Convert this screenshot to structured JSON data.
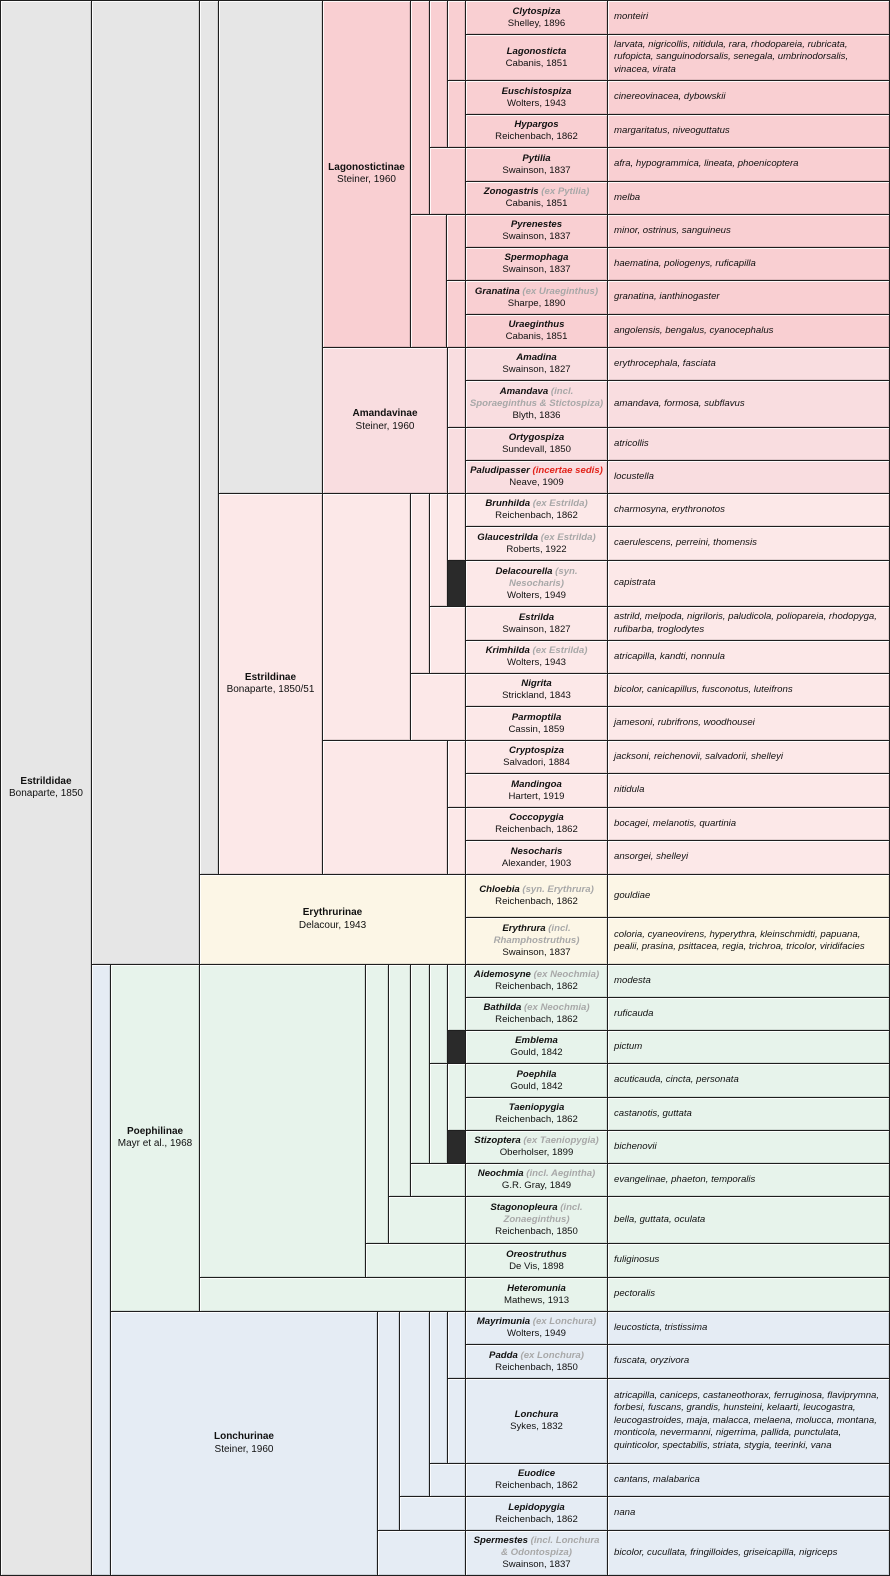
{
  "colors": {
    "gray": "#e6e6e6",
    "lagonostictinae": "#f9cfd2",
    "amandavinae": "#f9dde0",
    "estrildinae": "#fce8e8",
    "erythrurinae": "#fcf6e6",
    "poephilinae": "#e7f3eb",
    "lonchurinae": "#e5ecf4",
    "note_gray": "#a8a8a8",
    "note_red": "#e2231a"
  },
  "family": {
    "name": "Estrildidae",
    "author": "Bonaparte, 1850"
  },
  "subfamilies": {
    "lagonostictinae": {
      "name": "Lagonostictinae",
      "author": "Steiner, 1960"
    },
    "amandavinae": {
      "name": "Amandavinae",
      "author": "Steiner, 1960"
    },
    "estrildinae": {
      "name": "Estrildinae",
      "author": "Bonaparte, 1850/51"
    },
    "erythrurinae": {
      "name": "Erythrurinae",
      "author": "Delacour, 1943"
    },
    "poephilinae": {
      "name": "Poephilinae",
      "author": "Mayr et al., 1968"
    },
    "lonchurinae": {
      "name": "Lonchurinae",
      "author": "Steiner, 1960"
    }
  },
  "genera": [
    {
      "name": "Clytospiza",
      "note": "",
      "author": "Shelley, 1896",
      "species": "monteiri"
    },
    {
      "name": "Lagonosticta",
      "note": "",
      "author": "Cabanis, 1851",
      "species": "larvata, nigricollis, nitidula, rara, rhodopareia, rubricata, rufopicta, sanguinodorsalis, senegala, umbrinodorsalis, vinacea, virata"
    },
    {
      "name": "Euschistospiza",
      "note": "",
      "author": "Wolters, 1943",
      "species": "cinereovinacea, dybowskii"
    },
    {
      "name": "Hypargos",
      "note": "",
      "author": "Reichenbach, 1862",
      "species": "margaritatus, niveoguttatus"
    },
    {
      "name": "Pytilia",
      "note": "",
      "author": "Swainson, 1837",
      "species": "afra, hypogrammica, lineata, phoenicoptera"
    },
    {
      "name": "Zonogastris",
      "note": " (ex Pytilia)",
      "author": "Cabanis, 1851",
      "species": "melba"
    },
    {
      "name": "Pyrenestes",
      "note": "",
      "author": "Swainson, 1837",
      "species": "minor, ostrinus, sanguineus"
    },
    {
      "name": "Spermophaga",
      "note": "",
      "author": "Swainson, 1837",
      "species": "haematina, poliogenys, ruficapilla"
    },
    {
      "name": "Granatina",
      "note": " (ex Uraeginthus)",
      "author": "Sharpe, 1890",
      "species": "granatina, ianthinogaster"
    },
    {
      "name": "Uraeginthus",
      "note": "",
      "author": "Cabanis, 1851",
      "species": "angolensis, bengalus, cyanocephalus"
    },
    {
      "name": "Amadina",
      "note": "",
      "author": "Swainson, 1827",
      "species": "erythrocephala, fasciata"
    },
    {
      "name": "Amandava",
      "note": " (incl. Sporaeginthus & Stictospiza)",
      "author": "Blyth, 1836",
      "species": "amandava, formosa, subflavus"
    },
    {
      "name": "Ortygospiza",
      "note": "",
      "author": "Sundevall, 1850",
      "species": "atricollis"
    },
    {
      "name": "Paludipasser",
      "note": " (incertae sedis)",
      "author": "Neave, 1909",
      "species": "locustella"
    },
    {
      "name": "Brunhilda",
      "note": " (ex Estrilda)",
      "author": "Reichenbach, 1862",
      "species": "charmosyna, erythronotos"
    },
    {
      "name": "Glaucestrilda",
      "note": " (ex Estrilda)",
      "author": "Roberts, 1922",
      "species": "caerulescens, perreini, thomensis"
    },
    {
      "name": "Delacourella",
      "note": " (syn. Nesocharis)",
      "author": "Wolters, 1949",
      "species": "capistrata"
    },
    {
      "name": "Estrilda",
      "note": "",
      "author": "Swainson, 1827",
      "species": "astrild, melpoda, nigriloris, paludicola, poliopareia, rhodopyga, rufibarba, troglodytes"
    },
    {
      "name": "Krimhilda",
      "note": " (ex Estrilda)",
      "author": "Wolters, 1943",
      "species": "atricapilla, kandti, nonnula"
    },
    {
      "name": "Nigrita",
      "note": "",
      "author": "Strickland, 1843",
      "species": "bicolor, canicapillus, fusconotus, luteifrons"
    },
    {
      "name": "Parmoptila",
      "note": "",
      "author": "Cassin, 1859",
      "species": "jamesoni, rubrifrons, woodhousei"
    },
    {
      "name": "Cryptospiza",
      "note": "",
      "author": "Salvadori, 1884",
      "species": "jacksoni, reichenovii, salvadorii, shelleyi"
    },
    {
      "name": "Mandingoa",
      "note": "",
      "author": "Hartert, 1919",
      "species": "nitidula"
    },
    {
      "name": "Coccopygia",
      "note": "",
      "author": "Reichenbach, 1862",
      "species": "bocagei, melanotis, quartinia"
    },
    {
      "name": "Nesocharis",
      "note": "",
      "author": "Alexander, 1903",
      "species": "ansorgei, shelleyi"
    },
    {
      "name": "Chloebia",
      "note": " (syn. Erythrura)",
      "author": "Reichenbach, 1862",
      "species": "gouldiae"
    },
    {
      "name": "Erythrura",
      "note": " (incl. Rhamphostruthus)",
      "author": "Swainson, 1837",
      "species": "coloria, cyaneovirens, hyperythra, kleinschmidti, papuana, pealii, prasina, psittacea, regia, trichroa, tricolor, viridifacies"
    },
    {
      "name": "Aidemosyne",
      "note": " (ex Neochmia)",
      "author": "Reichenbach, 1862",
      "species": "modesta"
    },
    {
      "name": "Bathilda",
      "note": " (ex Neochmia)",
      "author": "Reichenbach, 1862",
      "species": "ruficauda"
    },
    {
      "name": "Emblema",
      "note": "",
      "author": "Gould, 1842",
      "species": "pictum"
    },
    {
      "name": "Poephila",
      "note": "",
      "author": "Gould, 1842",
      "species": "acuticauda, cincta, personata"
    },
    {
      "name": "Taeniopygia",
      "note": "",
      "author": "Reichenbach, 1862",
      "species": "castanotis, guttata"
    },
    {
      "name": "Stizoptera",
      "note": " (ex Taeniopygia)",
      "author": "Oberholser, 1899",
      "species": "bichenovii"
    },
    {
      "name": "Neochmia",
      "note": " (incl. Aegintha)",
      "author": "G.R. Gray, 1849",
      "species": "evangelinae, phaeton, temporalis"
    },
    {
      "name": "Stagonopleura",
      "note": " (incl. Zonaeginthus)",
      "author": "Reichenbach, 1850",
      "species": "bella, guttata, oculata"
    },
    {
      "name": "Oreostruthus",
      "note": "",
      "author": "De Vis, 1898",
      "species": "fuliginosus"
    },
    {
      "name": "Heteromunia",
      "note": "",
      "author": "Mathews, 1913",
      "species": "pectoralis"
    },
    {
      "name": "Mayrimunia",
      "note": " (ex Lonchura)",
      "author": "Wolters, 1949",
      "species": "leucosticta, tristissima"
    },
    {
      "name": "Padda",
      "note": " (ex Lonchura)",
      "author": "Reichenbach, 1850",
      "species": "fuscata, oryzivora"
    },
    {
      "name": "Lonchura",
      "note": "",
      "author": "Sykes, 1832",
      "species": "atricapilla, caniceps, castaneothorax, ferruginosa, flaviprymna, forbesi, fuscans, grandis, hunsteini, kelaarti, leucogastra, leucogastroides, maja, malacca, melaena, molucca, montana, monticola, nevermanni, nigerrima, pallida, punctulata, quinticolor, spectabilis, striata, stygia, teerinki, vana"
    },
    {
      "name": "Euodice",
      "note": "",
      "author": "Reichenbach, 1862",
      "species": "cantans, malabarica"
    },
    {
      "name": "Lepidopygia",
      "note": "",
      "author": "Reichenbach, 1862",
      "species": "nana"
    },
    {
      "name": "Spermestes",
      "note": " (incl. Lonchura & Odontospiza)",
      "author": "Swainson, 1837",
      "species": "bicolor, cucullata, fringilloides, griseicapilla, nigriceps"
    }
  ]
}
